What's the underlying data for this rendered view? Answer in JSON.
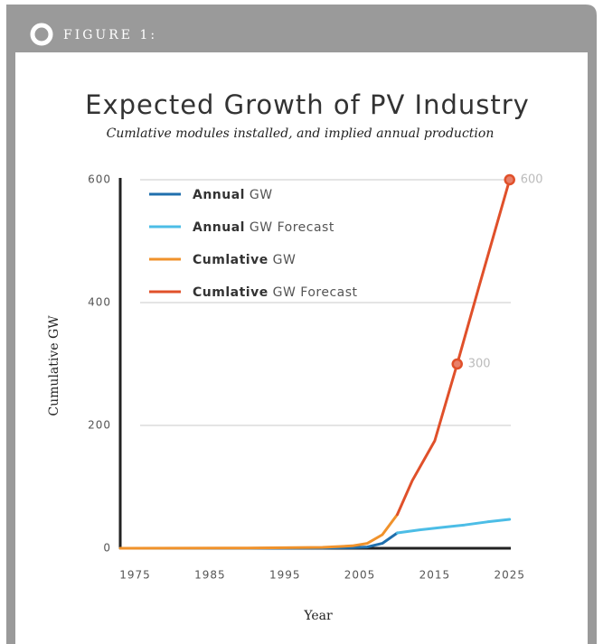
{
  "figure_label": "FIGURE 1:",
  "chart_data": {
    "type": "line",
    "title": "Expected Growth of PV Industry",
    "subtitle": "Cumlative modules installed, and implied annual production",
    "x_label": "Year",
    "y_label": "Cumulative GW",
    "xlim": [
      1973,
      2026
    ],
    "xticks": [
      1975,
      1985,
      1995,
      2005,
      2015,
      2025
    ],
    "ylim": [
      0,
      600
    ],
    "yticks": [
      0,
      200,
      400,
      600
    ],
    "grid": true,
    "legend": "upper left",
    "series": [
      {
        "name": "Annual GW",
        "color": "#1f6fad",
        "x": [
          1973,
          1990,
          2000,
          2004,
          2006,
          2008,
          2010
        ],
        "values": [
          0,
          0,
          0.5,
          1,
          2,
          8,
          25
        ]
      },
      {
        "name": "Annual GW Forecast",
        "color": "#4cbde6",
        "x": [
          2010,
          2013,
          2016,
          2019,
          2022,
          2025
        ],
        "values": [
          25,
          30,
          34,
          38,
          43,
          47
        ]
      },
      {
        "name": "Cumlative GW",
        "color": "#f0922b",
        "x": [
          1973,
          1990,
          2000,
          2004,
          2006,
          2008,
          2010
        ],
        "values": [
          0,
          0.5,
          1.5,
          4,
          8,
          22,
          55
        ]
      },
      {
        "name": "Cumlative GW Forecast",
        "color": "#e0502a",
        "x": [
          2010,
          2012,
          2015,
          2018,
          2021,
          2025
        ],
        "values": [
          55,
          110,
          175,
          300,
          430,
          600
        ],
        "value_labels": [
          null,
          null,
          null,
          "300",
          null,
          "600"
        ]
      }
    ]
  }
}
